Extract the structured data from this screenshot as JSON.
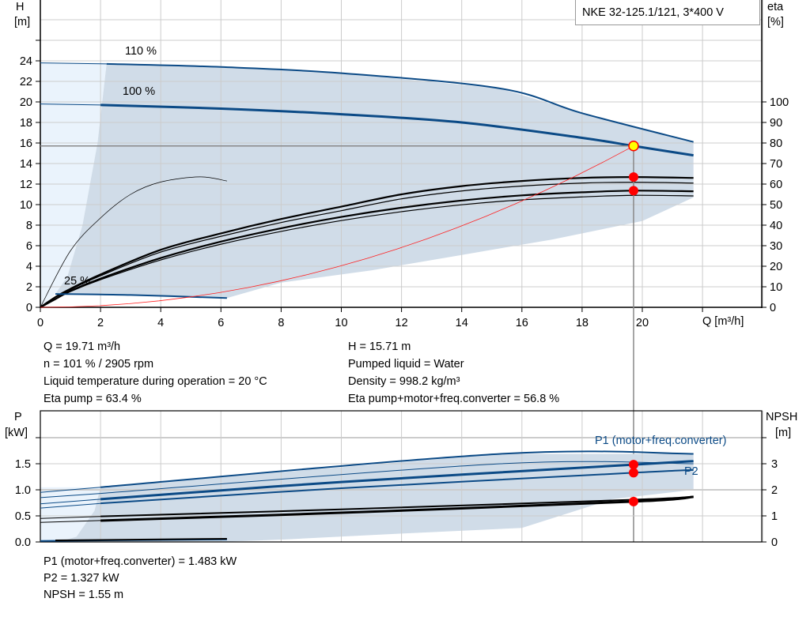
{
  "chart_data": [
    {
      "type": "line",
      "title": "NKE 32-125.1/121, 3*400 V",
      "xlabel": "Q [m³/h]",
      "ylabel_left": [
        "H",
        "[m]"
      ],
      "ylabel_right": [
        "eta",
        "[%]"
      ],
      "xlim": [
        0,
        24
      ],
      "ylim_left": [
        0,
        30
      ],
      "ylim_right": [
        0,
        115.4
      ],
      "xticks": [
        0,
        2,
        4,
        6,
        8,
        10,
        12,
        14,
        16,
        18,
        20
      ],
      "yticks_left": [
        0,
        2,
        4,
        6,
        8,
        10,
        12,
        14,
        16,
        18,
        20,
        22,
        24
      ],
      "yticks_right": [
        0,
        10,
        20,
        30,
        40,
        50,
        60,
        70,
        80,
        90,
        100
      ],
      "grid": true,
      "annotations": [
        "110 %",
        "100 %",
        "25 %"
      ],
      "colors": {
        "curve": "#0b4a86",
        "area": "#d0dce8",
        "light_area": "#eaf3fc",
        "system": "#ff2020",
        "point": "#ff0000",
        "duty": "#ffff00",
        "grid": "#cccccc"
      },
      "head_curves": [
        {
          "label": "110 %",
          "points": [
            [
              0,
              23.8
            ],
            [
              2.2,
              23.7
            ],
            [
              6,
              23.4
            ],
            [
              10,
              22.8
            ],
            [
              15.3,
              21.3
            ],
            [
              18,
              18.9
            ],
            [
              21.7,
              16.1
            ]
          ]
        },
        {
          "label": "100 %",
          "points": [
            [
              0,
              19.8
            ],
            [
              2,
              19.7
            ],
            [
              6,
              19.35
            ],
            [
              10,
              18.8
            ],
            [
              14,
              18
            ],
            [
              18,
              16.5
            ],
            [
              19.71,
              15.71
            ],
            [
              21.7,
              14.8
            ]
          ]
        },
        {
          "label": "25 %",
          "points": [
            [
              0.5,
              1.3
            ],
            [
              3,
              1.2
            ],
            [
              6.2,
              0.9
            ]
          ]
        }
      ],
      "system_curve": {
        "q": 19.71,
        "h": 15.71
      },
      "eta_pump": [
        [
          0,
          0
        ],
        [
          0.5,
          5
        ],
        [
          1,
          9
        ],
        [
          2,
          16
        ],
        [
          4,
          28
        ],
        [
          6,
          36
        ],
        [
          8,
          43
        ],
        [
          10,
          49
        ],
        [
          12,
          55
        ],
        [
          14,
          59
        ],
        [
          16,
          61.5
        ],
        [
          18,
          63
        ],
        [
          19.71,
          63.4
        ],
        [
          21.7,
          63
        ]
      ],
      "eta_total": [
        [
          0,
          0
        ],
        [
          0.5,
          4
        ],
        [
          1,
          8
        ],
        [
          2,
          14
        ],
        [
          4,
          24
        ],
        [
          6,
          32
        ],
        [
          8,
          38.5
        ],
        [
          10,
          44
        ],
        [
          12,
          48.5
        ],
        [
          14,
          52
        ],
        [
          16,
          54.5
        ],
        [
          18,
          56
        ],
        [
          19.71,
          56.8
        ],
        [
          21.7,
          56.5
        ]
      ],
      "eta_small": [
        [
          0,
          0
        ],
        [
          1,
          27.5
        ],
        [
          2,
          43.5
        ],
        [
          3,
          55
        ],
        [
          4,
          61
        ],
        [
          5.3,
          63.5
        ],
        [
          6.2,
          61.5
        ]
      ],
      "duty_point": {
        "q": 19.71,
        "h": 15.71,
        "eta_pump": 63.4,
        "eta_total": 56.8
      }
    },
    {
      "type": "line",
      "xlim": [
        0,
        24
      ],
      "ylim_left": [
        0,
        2.5
      ],
      "ylim_right": [
        0,
        5
      ],
      "ylabel_left": [
        "P",
        "[kW]"
      ],
      "ylabel_right": [
        "NPSH",
        "[m]"
      ],
      "yticks_left": [
        "0.0",
        "0.5",
        "1.0",
        "1.5"
      ],
      "yticks_right": [
        0,
        1,
        2,
        3
      ],
      "labels": [
        "P1 (motor+freq.converter)",
        "P2"
      ],
      "p1_max": [
        [
          0,
          0.95
        ],
        [
          2,
          1.05
        ],
        [
          15.3,
          1.69
        ],
        [
          21.7,
          1.69
        ]
      ],
      "p2_max": [
        [
          0,
          0.85
        ],
        [
          2,
          0.93
        ],
        [
          15.3,
          1.5
        ],
        [
          21.7,
          1.5
        ]
      ],
      "p1": [
        [
          0,
          0.73
        ],
        [
          2,
          0.82
        ],
        [
          10,
          1.15
        ],
        [
          19.71,
          1.483
        ],
        [
          21.7,
          1.55
        ]
      ],
      "p2": [
        [
          0,
          0.65
        ],
        [
          2,
          0.74
        ],
        [
          10,
          1.03
        ],
        [
          19.71,
          1.327
        ],
        [
          21.7,
          1.38
        ]
      ],
      "p_min": [
        [
          0,
          0.02
        ],
        [
          6.2,
          0.05
        ]
      ],
      "npsh_max": [
        [
          0,
          0.9
        ],
        [
          2,
          0.98
        ],
        [
          10,
          1.25
        ],
        [
          19.71,
          1.62
        ],
        [
          21.7,
          1.74
        ]
      ],
      "npsh": [
        [
          0,
          0.75
        ],
        [
          2,
          0.82
        ],
        [
          10,
          1.12
        ],
        [
          19.71,
          1.55
        ],
        [
          21.7,
          1.73
        ]
      ],
      "npsh_min": [
        [
          0.5,
          0.06
        ],
        [
          6.2,
          0.12
        ]
      ],
      "duty_point": {
        "q": 19.71,
        "p1": 1.483,
        "p2": 1.327,
        "npsh": 1.55
      }
    }
  ],
  "readout_top": {
    "left": [
      "Q = 19.71 m³/h",
      "n = 101 % / 2905 rpm",
      "Liquid temperature during operation = 20 °C",
      "Eta pump = 63.4 %"
    ],
    "right": [
      "H = 15.71 m",
      "Pumped liquid = Water",
      "Density = 998.2 kg/m³",
      "Eta pump+motor+freq.converter = 56.8 %"
    ]
  },
  "readout_bottom": [
    "P1 (motor+freq.converter) = 1.483 kW",
    "P2 = 1.327 kW",
    "NPSH = 1.55 m"
  ]
}
